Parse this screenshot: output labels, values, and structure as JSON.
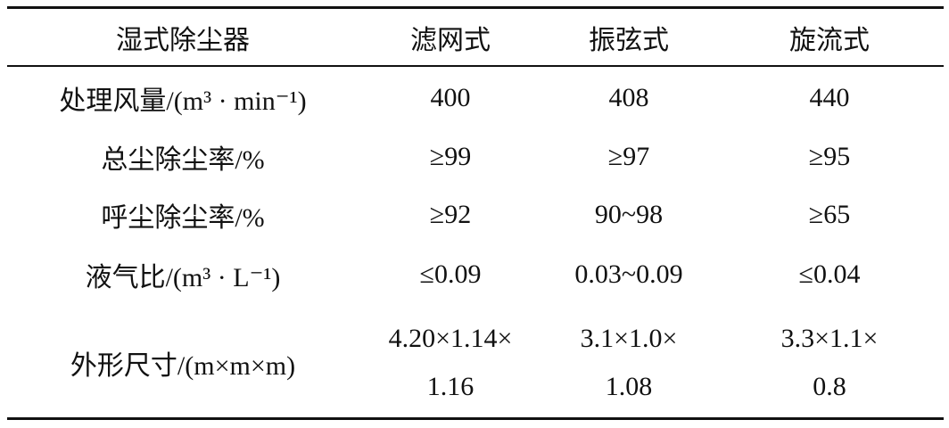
{
  "table": {
    "header": [
      "湿式除尘器",
      "滤网式",
      "振弦式",
      "旋流式"
    ],
    "rows": [
      [
        "处理风量/(m³ · min⁻¹)",
        "400",
        "408",
        "440"
      ],
      [
        "总尘除尘率/%",
        "≥99",
        "≥97",
        "≥95"
      ],
      [
        "呼尘除尘率/%",
        "≥92",
        "90~98",
        "≥65"
      ],
      [
        "液气比/(m³ · L⁻¹)",
        "≤0.09",
        "0.03~0.09",
        "≤0.04"
      ],
      [
        "外形尺寸/(m×m×m)",
        [
          "4.20×1.14×",
          "1.16"
        ],
        [
          "3.1×1.0×",
          "1.08"
        ],
        [
          "3.3×1.1×",
          "0.8"
        ]
      ]
    ]
  }
}
